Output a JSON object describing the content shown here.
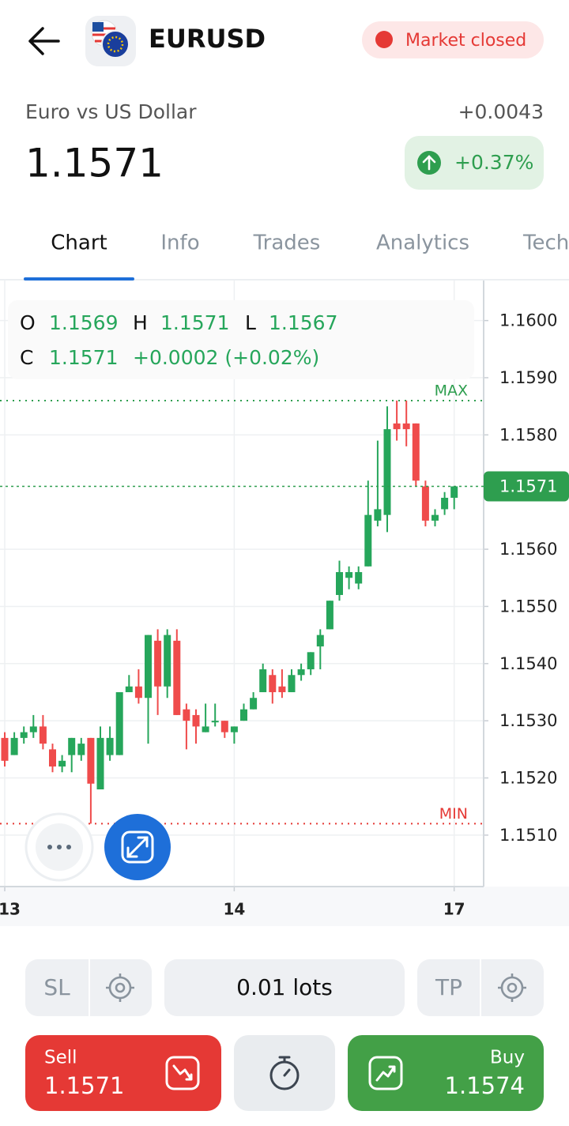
{
  "header": {
    "symbol": "EURUSD",
    "status": "Market closed"
  },
  "quote": {
    "name": "Euro vs US Dollar",
    "change": "+0.0043",
    "price": "1.1571",
    "change_percent": "+0.37%"
  },
  "tabs": [
    "Chart",
    "Info",
    "Trades",
    "Analytics",
    "Tech"
  ],
  "ohlc_panel": {
    "o_label": "O",
    "o": "1.1569",
    "h_label": "H",
    "h": "1.1571",
    "l_label": "L",
    "l": "1.1567",
    "c_label": "C",
    "c": "1.1571",
    "change": "+0.0002 (+0.02%)"
  },
  "chart_data": {
    "type": "candlestick",
    "categories": [
      "13",
      null,
      null,
      null,
      null,
      null,
      null,
      null,
      null,
      null,
      null,
      null,
      null,
      null,
      null,
      null,
      null,
      null,
      null,
      null,
      null,
      null,
      null,
      null,
      "14",
      null,
      null,
      null,
      null,
      null,
      null,
      null,
      null,
      null,
      null,
      null,
      null,
      null,
      null,
      null,
      null,
      null,
      null,
      null,
      null,
      null,
      null,
      "17"
    ],
    "open": [
      1.1527,
      1.1524,
      1.1527,
      1.1528,
      1.1529,
      1.1525,
      1.1522,
      1.1524,
      1.1524,
      1.1527,
      1.1518,
      1.1524,
      1.1524,
      1.1535,
      1.1536,
      1.1534,
      1.1544,
      1.1536,
      1.1544,
      1.1532,
      1.1531,
      1.1528,
      1.153,
      1.153,
      1.1528,
      1.153,
      1.1532,
      1.1535,
      1.1538,
      1.1536,
      1.1535,
      1.1538,
      1.1539,
      1.1543,
      1.1546,
      1.1552,
      1.1555,
      1.1554,
      1.1557,
      1.1565,
      1.1566,
      1.1582,
      1.1582,
      1.1582,
      1.1571,
      1.1565,
      1.1567,
      1.1569
    ],
    "high": [
      1.1528,
      1.1528,
      1.1529,
      1.1531,
      1.1531,
      1.1526,
      1.1524,
      1.1527,
      1.1527,
      1.1527,
      1.1529,
      1.1529,
      1.1535,
      1.1538,
      1.1539,
      1.1545,
      1.1546,
      1.1546,
      1.1546,
      1.1533,
      1.1532,
      1.1533,
      1.1533,
      1.153,
      1.1529,
      1.1533,
      1.1535,
      1.154,
      1.1539,
      1.1539,
      1.1539,
      1.154,
      1.1542,
      1.1546,
      1.1551,
      1.1558,
      1.1557,
      1.1557,
      1.1572,
      1.1579,
      1.1585,
      1.1586,
      1.1586,
      1.1582,
      1.1572,
      1.1567,
      1.157,
      1.1571
    ],
    "low": [
      1.1522,
      1.1524,
      1.1526,
      1.1527,
      1.1525,
      1.1521,
      1.1521,
      1.1521,
      1.1523,
      1.1512,
      1.1518,
      1.1523,
      1.1524,
      1.1535,
      1.1533,
      1.1526,
      1.1531,
      1.1534,
      1.1531,
      1.1525,
      1.1526,
      1.1528,
      1.1529,
      1.1527,
      1.1526,
      1.153,
      1.1532,
      1.1535,
      1.1533,
      1.1534,
      1.1535,
      1.1537,
      1.1538,
      1.1539,
      1.1546,
      1.1551,
      1.1553,
      1.1553,
      1.1557,
      1.1564,
      1.1563,
      1.1579,
      1.1578,
      1.1571,
      1.1564,
      1.1564,
      1.1566,
      1.1567
    ],
    "close": [
      1.1523,
      1.1527,
      1.1528,
      1.1529,
      1.1526,
      1.1522,
      1.1523,
      1.1527,
      1.1526,
      1.1519,
      1.1527,
      1.1527,
      1.1535,
      1.1536,
      1.1534,
      1.1545,
      1.1536,
      1.1545,
      1.1531,
      1.153,
      1.1529,
      1.1529,
      1.153,
      1.1528,
      1.1529,
      1.1532,
      1.1534,
      1.1539,
      1.1535,
      1.1535,
      1.1538,
      1.1539,
      1.1542,
      1.1545,
      1.1551,
      1.1556,
      1.1556,
      1.1556,
      1.1566,
      1.1567,
      1.1581,
      1.1581,
      1.1581,
      1.1572,
      1.1565,
      1.1566,
      1.1569,
      1.1571
    ],
    "up_color": "#26a65b",
    "down_color": "#ef4b4b",
    "ylim": [
      1.1501,
      1.1607
    ],
    "yticks": [
      {
        "value": 1.16,
        "label": "1.1600"
      },
      {
        "value": 1.159,
        "label": "1.1590"
      },
      {
        "value": 1.158,
        "label": "1.1580"
      },
      {
        "value": 1.156,
        "label": "1.1560"
      },
      {
        "value": 1.155,
        "label": "1.1550"
      },
      {
        "value": 1.154,
        "label": "1.1540"
      },
      {
        "value": 1.153,
        "label": "1.1530"
      },
      {
        "value": 1.152,
        "label": "1.1520"
      },
      {
        "value": 1.151,
        "label": "1.1510"
      }
    ],
    "grid": true,
    "max_line": {
      "label": "MAX",
      "value": 1.1586
    },
    "min_line": {
      "label": "MIN",
      "value": 1.1512
    },
    "last_price": 1.1571
  },
  "trade": {
    "sl": "SL",
    "lots": "0.01 lots",
    "tp": "TP",
    "sell_label": "Sell",
    "sell_price": "1.1571",
    "buy_label": "Buy",
    "buy_price": "1.1574"
  }
}
